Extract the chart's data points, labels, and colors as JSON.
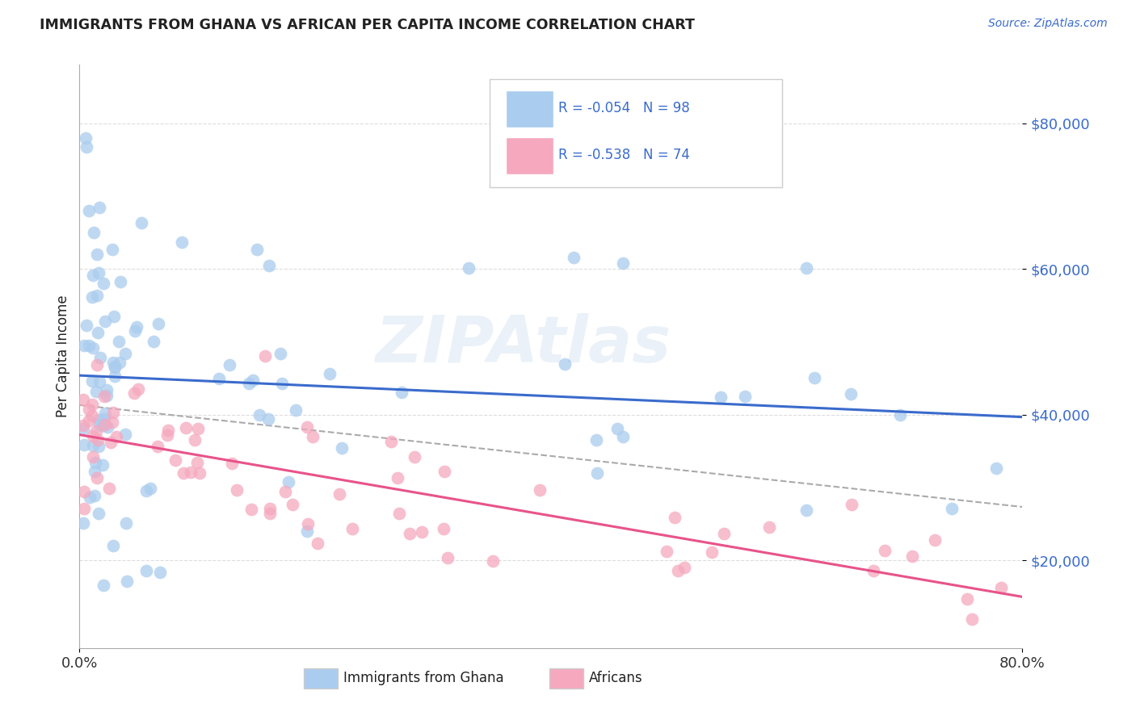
{
  "title": "IMMIGRANTS FROM GHANA VS AFRICAN PER CAPITA INCOME CORRELATION CHART",
  "source": "Source: ZipAtlas.com",
  "ylabel": "Per Capita Income",
  "yticks": [
    20000,
    40000,
    60000,
    80000
  ],
  "ytick_labels": [
    "$20,000",
    "$40,000",
    "$60,000",
    "$80,000"
  ],
  "xlim": [
    0.0,
    80.0
  ],
  "ylim": [
    8000,
    88000
  ],
  "series1_color": "#aaccee",
  "series2_color": "#f5a8be",
  "trendline1_color": "#3a6bcc",
  "trendline2_color": "#e8538a",
  "dashed_color": "#aaaaaa",
  "watermark": "ZIPAtlas",
  "watermark_color": "#6699cc",
  "background_color": "#ffffff",
  "grid_color": "#dddddd",
  "legend_text_color": "#3a6bcc",
  "title_color": "#222222",
  "source_color": "#3a6bcc",
  "axis_label_color": "#222222",
  "tick_label_color": "#3a6bcc",
  "bottom_legend_color": "#222222"
}
